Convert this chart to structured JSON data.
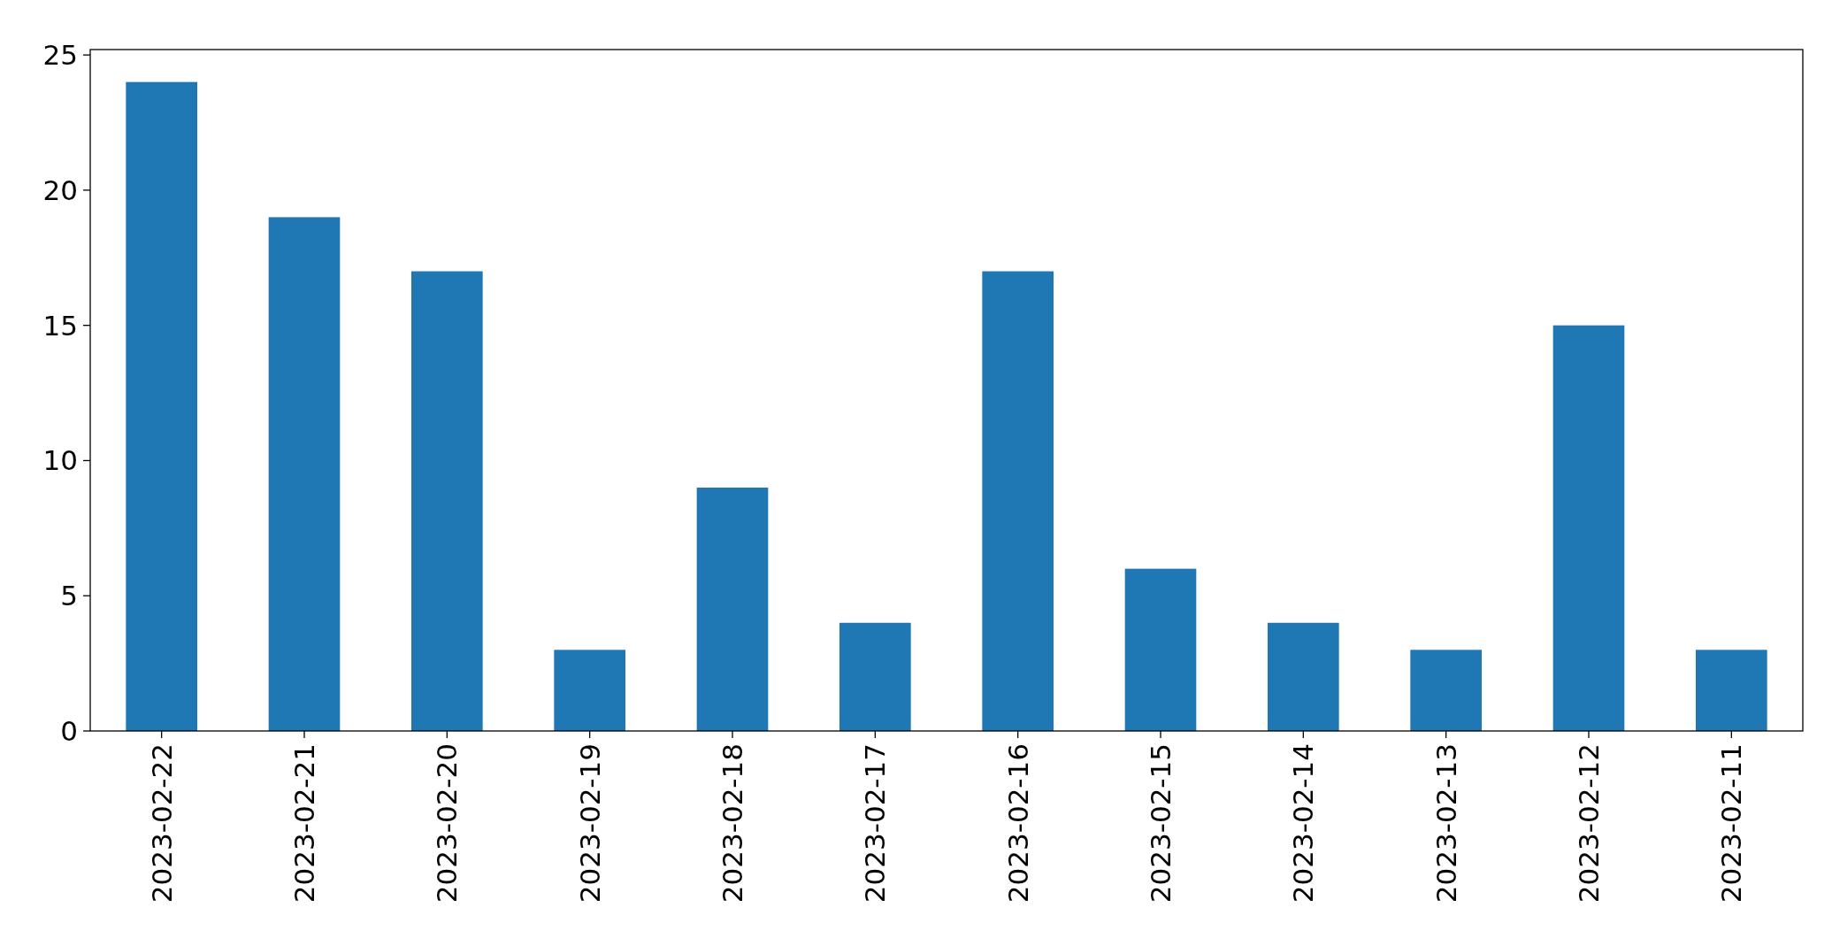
{
  "chart_data": {
    "type": "bar",
    "categories": [
      "2023-02-22",
      "2023-02-21",
      "2023-02-20",
      "2023-02-19",
      "2023-02-18",
      "2023-02-17",
      "2023-02-16",
      "2023-02-15",
      "2023-02-14",
      "2023-02-13",
      "2023-02-12",
      "2023-02-11"
    ],
    "values": [
      24,
      19,
      17,
      3,
      9,
      4,
      17,
      6,
      4,
      3,
      15,
      3
    ],
    "color": "#1f77b4",
    "ylim": [
      0,
      25.2
    ],
    "yticks": [
      0,
      5,
      10,
      15,
      20,
      25
    ]
  }
}
